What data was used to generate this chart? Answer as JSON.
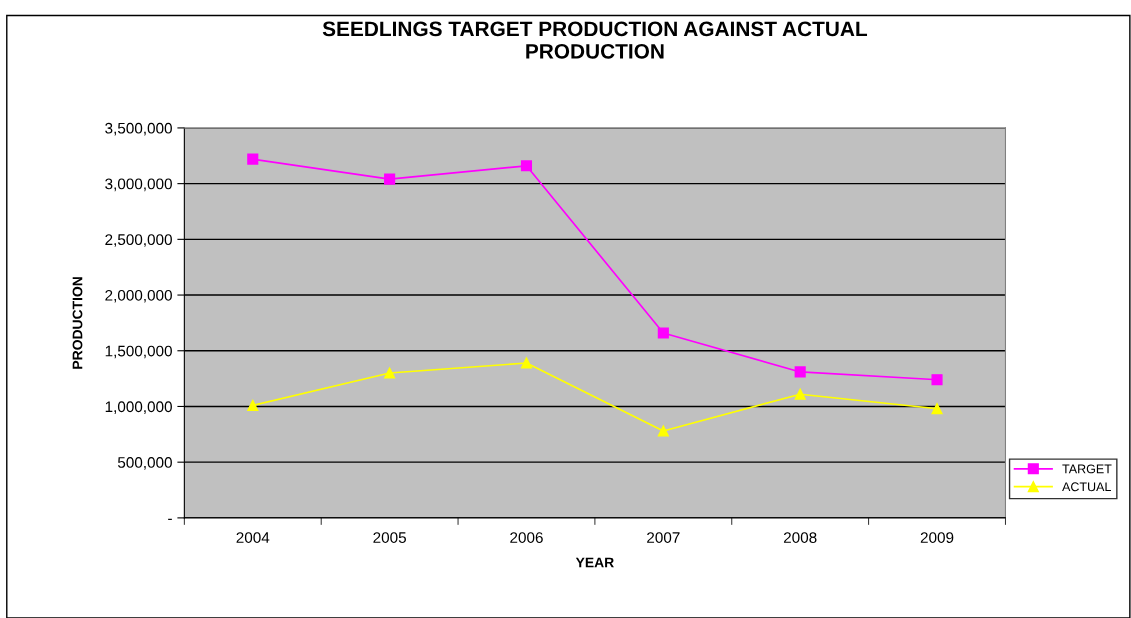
{
  "chart_data": {
    "type": "line",
    "title": "SEEDLINGS TARGET PRODUCTION AGAINST ACTUAL\nPRODUCTION",
    "xlabel": "YEAR",
    "ylabel": "PRODUCTION",
    "categories": [
      "2004",
      "2005",
      "2006",
      "2007",
      "2008",
      "2009"
    ],
    "series": [
      {
        "name": "TARGET",
        "color": "#ff00ff",
        "marker": "square",
        "values": [
          3220000,
          3040000,
          3160000,
          1660000,
          1310000,
          1240000
        ]
      },
      {
        "name": "ACTUAL",
        "color": "#ffff00",
        "marker": "triangle",
        "values": [
          1010000,
          1300000,
          1390000,
          780000,
          1110000,
          980000
        ]
      }
    ],
    "ylim": [
      0,
      3500000
    ],
    "yticks": [
      {
        "value": 0,
        "label": "-"
      },
      {
        "value": 500000,
        "label": "500,000"
      },
      {
        "value": 1000000,
        "label": "1,000,000"
      },
      {
        "value": 1500000,
        "label": "1,500,000"
      },
      {
        "value": 2000000,
        "label": "2,000,000"
      },
      {
        "value": 2500000,
        "label": "2,500,000"
      },
      {
        "value": 3000000,
        "label": "3,000,000"
      },
      {
        "value": 3500000,
        "label": "3,500,000"
      }
    ],
    "grid": "y",
    "legend": "right"
  }
}
